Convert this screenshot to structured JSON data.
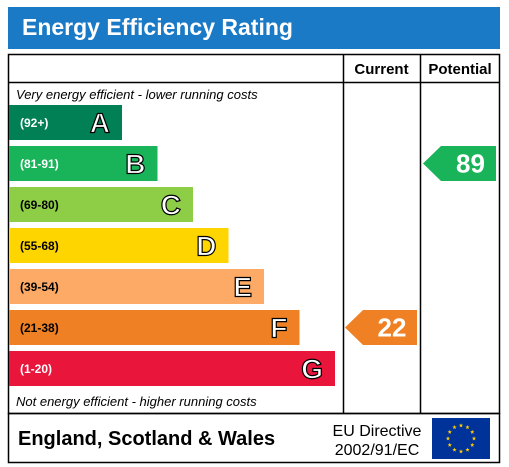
{
  "header": {
    "title": "Energy Efficiency Rating"
  },
  "columns": {
    "current": "Current",
    "potential": "Potential"
  },
  "notes": {
    "top": "Very energy efficient - lower running costs",
    "bottom": "Not energy efficient - higher running costs"
  },
  "footer": {
    "region": "England, Scotland & Wales",
    "directive_line1": "EU Directive",
    "directive_line2": "2002/91/EC",
    "flag_icon": "eu-flag-icon"
  },
  "chart_data": {
    "type": "bar",
    "title": "Energy Efficiency Rating",
    "bands": [
      {
        "letter": "A",
        "range": "(92+)",
        "min": 92,
        "max": 100,
        "color": "#008054"
      },
      {
        "letter": "B",
        "range": "(81-91)",
        "min": 81,
        "max": 91,
        "color": "#19b459"
      },
      {
        "letter": "C",
        "range": "(69-80)",
        "min": 69,
        "max": 80,
        "color": "#8dce46"
      },
      {
        "letter": "D",
        "range": "(55-68)",
        "min": 55,
        "max": 68,
        "color": "#ffd500"
      },
      {
        "letter": "E",
        "range": "(39-54)",
        "min": 39,
        "max": 54,
        "color": "#fcaa65"
      },
      {
        "letter": "F",
        "range": "(21-38)",
        "min": 21,
        "max": 38,
        "color": "#ef8023"
      },
      {
        "letter": "G",
        "range": "(1-20)",
        "min": 1,
        "max": 20,
        "color": "#e9153b"
      }
    ],
    "current": {
      "value": 22,
      "band": "F",
      "color": "#ef8023"
    },
    "potential": {
      "value": 89,
      "band": "B",
      "color": "#19b459"
    }
  }
}
